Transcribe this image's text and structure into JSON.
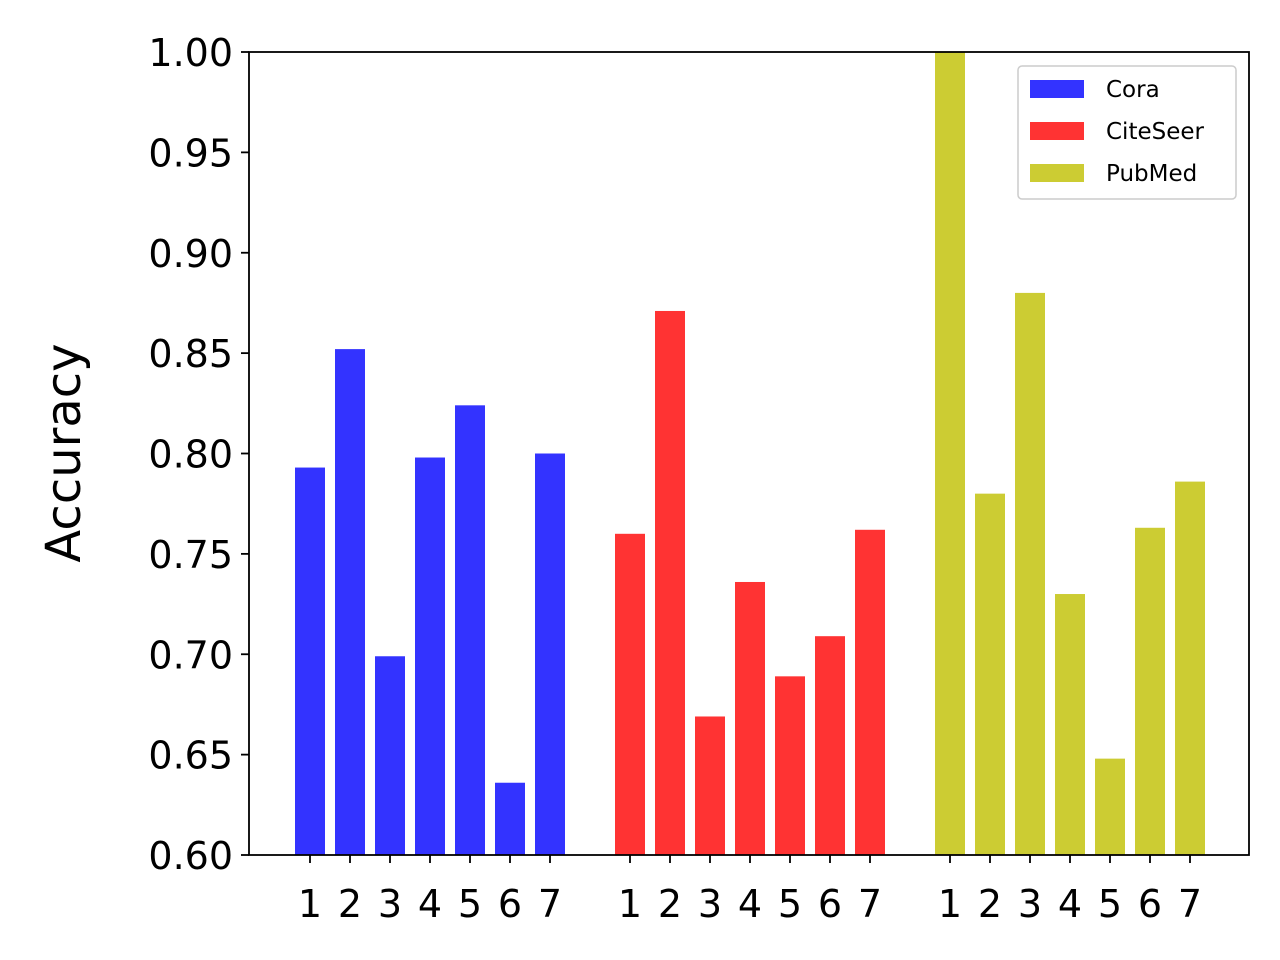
{
  "chart_data": {
    "type": "bar",
    "title": "",
    "xlabel": "",
    "ylabel": "Accuracy",
    "ylim": [
      0.6,
      1.0
    ],
    "yticks": [
      "0.60",
      "0.65",
      "0.70",
      "0.75",
      "0.80",
      "0.85",
      "0.90",
      "0.95",
      "1.00"
    ],
    "ytick_values": [
      0.6,
      0.65,
      0.7,
      0.75,
      0.8,
      0.85,
      0.9,
      0.95,
      1.0
    ],
    "categories": [
      "1",
      "2",
      "3",
      "4",
      "5",
      "6",
      "7"
    ],
    "grid": false,
    "legend_position": "top-right",
    "series": [
      {
        "name": "Cora",
        "color": "#3333ff",
        "values": [
          0.793,
          0.852,
          0.699,
          0.798,
          0.824,
          0.636,
          0.8
        ]
      },
      {
        "name": "CiteSeer",
        "color": "#ff3333",
        "values": [
          0.76,
          0.871,
          0.669,
          0.736,
          0.689,
          0.709,
          0.762
        ]
      },
      {
        "name": "PubMed",
        "color": "#cccc33",
        "values": [
          1.0,
          0.78,
          0.88,
          0.73,
          0.648,
          0.763,
          0.786
        ]
      }
    ]
  }
}
